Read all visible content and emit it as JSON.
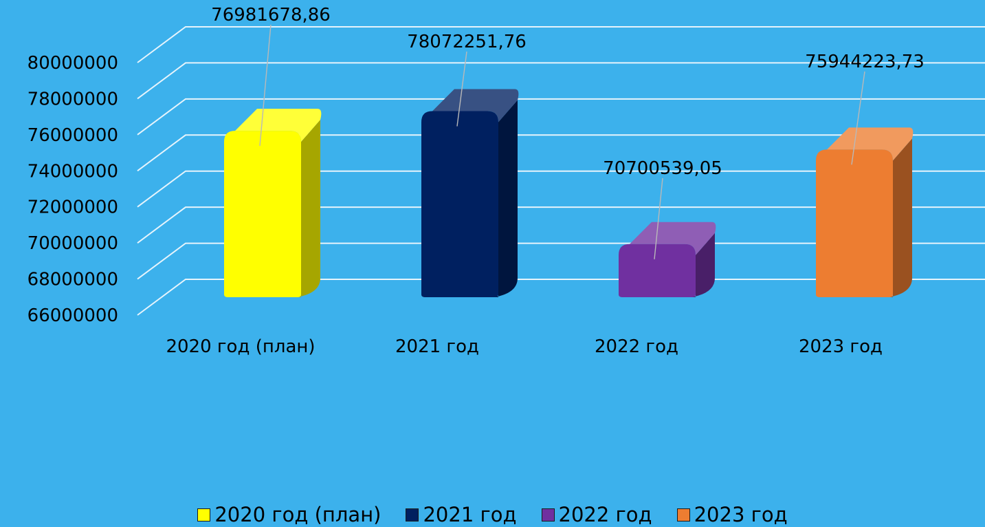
{
  "chart_data": {
    "type": "bar",
    "categories": [
      "2020 год (план)",
      "2021 год",
      "2022 год",
      "2023 год"
    ],
    "values": [
      76981678.86,
      78072251.76,
      70700539.05,
      75944223.73
    ],
    "value_labels": [
      "76981678,86",
      "78072251,76",
      "70700539,05",
      "75944223,73"
    ],
    "colors": [
      "#ffff00",
      "#002060",
      "#7030a0",
      "#ed7d31"
    ],
    "ylim": [
      66000000,
      80000000
    ],
    "yticks": [
      "66000000",
      "68000000",
      "70000000",
      "72000000",
      "74000000",
      "76000000",
      "78000000",
      "80000000"
    ],
    "grid": true,
    "style": "3d",
    "legend": {
      "position": "bottom",
      "entries": [
        "2020 год (план)",
        "2021 год",
        "2022 год",
        "2023 год"
      ]
    }
  }
}
